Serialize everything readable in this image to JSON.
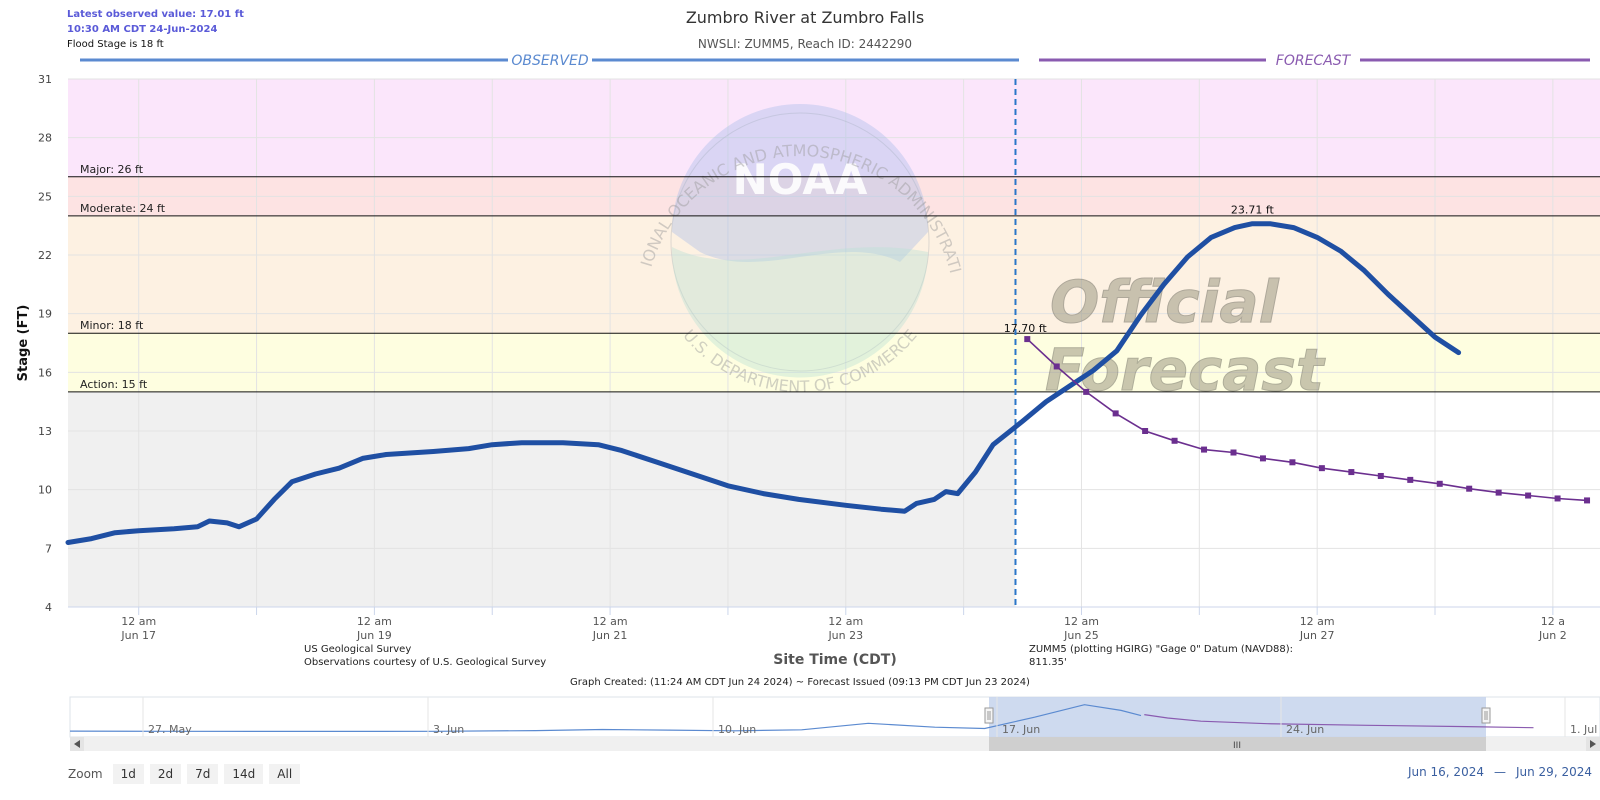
{
  "latest": {
    "line1": "Latest observed value: 17.01 ft",
    "line2": "10:30 AM CDT 24-Jun-2024",
    "flood": "Flood Stage is 18 ft"
  },
  "title": "Zumbro River at Zumbro Falls",
  "subtitle": "NWSLI: ZUMM5, Reach ID: 2442290",
  "observed_label": "OBSERVED",
  "forecast_label": "FORECAST",
  "watermark": {
    "line1": "Official",
    "line2": "Forecast",
    "noaa_text": "NOAA",
    "ring_top": "NATIONAL OCEANIC AND ATMOSPHERIC ADMINISTRATION",
    "ring_bottom": "U.S. DEPARTMENT OF COMMERCE"
  },
  "footer": {
    "source1": "US Geological Survey",
    "source2": "Observations courtesy of U.S. Geological Survey",
    "datum1": "ZUMM5 (plotting HGIRG) \"Gage 0\" Datum (NAVD88):",
    "datum2": "811.35'",
    "created": "Graph Created: (11:24 AM CDT Jun 24 2024) ~ Forecast Issued (09:13 PM CDT Jun 23 2024)"
  },
  "navigator": {
    "labels": [
      "27. May",
      "3. Jun",
      "10. Jun",
      "17. Jun",
      "24. Jun",
      "1. Jul"
    ],
    "grip": "III"
  },
  "zoom": {
    "label": "Zoom",
    "buttons": [
      "1d",
      "2d",
      "7d",
      "14d",
      "All"
    ]
  },
  "range": {
    "from": "Jun 16, 2024",
    "sep": "—",
    "to": "Jun 29, 2024"
  },
  "colors": {
    "observed": "#1f4fa3",
    "forecast": "#6b2f8f",
    "major": "#fbe6fb",
    "moderate": "#fde3e3",
    "minor": "#fdf1e2",
    "action": "#fefee0",
    "below": "#f0f0f0"
  },
  "chart_data": {
    "type": "line",
    "xlabel": "Site Time (CDT)",
    "ylabel": "Stage (FT)",
    "ylim": [
      4,
      31
    ],
    "xlim": [
      -0.6,
      12.4
    ],
    "x_unit": "days since Jun 17 00:00 CDT",
    "yticks": [
      4,
      7,
      10,
      13,
      16,
      19,
      22,
      25,
      28,
      31
    ],
    "xticks": [
      {
        "d": 0,
        "l1": "12 am",
        "l2": "Jun 17"
      },
      {
        "d": 2,
        "l1": "12 am",
        "l2": "Jun 19"
      },
      {
        "d": 4,
        "l1": "12 am",
        "l2": "Jun 21"
      },
      {
        "d": 6,
        "l1": "12 am",
        "l2": "Jun 23"
      },
      {
        "d": 8,
        "l1": "12 am",
        "l2": "Jun 25"
      },
      {
        "d": 10,
        "l1": "12 am",
        "l2": "Jun 27"
      },
      {
        "d": 12,
        "l1": "12 a",
        "l2": "Jun 2"
      }
    ],
    "thresholds": [
      {
        "name": "Major",
        "label": "Major: 26 ft",
        "value": 26
      },
      {
        "name": "Moderate",
        "label": "Moderate: 24 ft",
        "value": 24
      },
      {
        "name": "Minor",
        "label": "Minor: 18 ft",
        "value": 18
      },
      {
        "name": "Action",
        "label": "Action: 15 ft",
        "value": 15
      }
    ],
    "now": 7.44,
    "series": [
      {
        "name": "Observed",
        "points": [
          [
            -0.6,
            7.3
          ],
          [
            -0.4,
            7.5
          ],
          [
            -0.2,
            7.8
          ],
          [
            0.0,
            7.9
          ],
          [
            0.3,
            8.0
          ],
          [
            0.5,
            8.1
          ],
          [
            0.6,
            8.4
          ],
          [
            0.75,
            8.3
          ],
          [
            0.85,
            8.1
          ],
          [
            1.0,
            8.5
          ],
          [
            1.15,
            9.5
          ],
          [
            1.3,
            10.4
          ],
          [
            1.5,
            10.8
          ],
          [
            1.7,
            11.1
          ],
          [
            1.9,
            11.6
          ],
          [
            2.1,
            11.8
          ],
          [
            2.5,
            11.95
          ],
          [
            2.8,
            12.1
          ],
          [
            3.0,
            12.3
          ],
          [
            3.25,
            12.4
          ],
          [
            3.6,
            12.4
          ],
          [
            3.9,
            12.3
          ],
          [
            4.1,
            12.0
          ],
          [
            4.4,
            11.4
          ],
          [
            4.7,
            10.8
          ],
          [
            5.0,
            10.2
          ],
          [
            5.3,
            9.8
          ],
          [
            5.6,
            9.5
          ],
          [
            6.0,
            9.2
          ],
          [
            6.3,
            9.0
          ],
          [
            6.5,
            8.9
          ],
          [
            6.6,
            9.3
          ],
          [
            6.75,
            9.5
          ],
          [
            6.85,
            9.9
          ],
          [
            6.95,
            9.8
          ],
          [
            7.1,
            10.9
          ],
          [
            7.25,
            12.3
          ],
          [
            7.5,
            13.5
          ],
          [
            7.7,
            14.5
          ],
          [
            7.9,
            15.3
          ],
          [
            8.1,
            16.1
          ],
          [
            8.3,
            17.1
          ],
          [
            8.5,
            18.9
          ],
          [
            8.7,
            20.5
          ],
          [
            8.9,
            21.9
          ],
          [
            9.1,
            22.9
          ],
          [
            9.3,
            23.4
          ],
          [
            9.45,
            23.6
          ],
          [
            9.6,
            23.6
          ],
          [
            9.8,
            23.4
          ],
          [
            10.0,
            22.9
          ],
          [
            10.2,
            22.2
          ],
          [
            10.4,
            21.2
          ],
          [
            10.6,
            20.0
          ],
          [
            10.8,
            18.9
          ],
          [
            11.0,
            17.8
          ],
          [
            11.2,
            17.01
          ]
        ],
        "peak_label": "23.71 ft",
        "peak_at": [
          9.45,
          23.71
        ]
      },
      {
        "name": "Forecast",
        "points": [
          [
            7.54,
            17.7
          ],
          [
            7.79,
            16.3
          ],
          [
            8.04,
            15.0
          ],
          [
            8.29,
            13.9
          ],
          [
            8.54,
            13.0
          ],
          [
            8.79,
            12.5
          ],
          [
            9.04,
            12.05
          ],
          [
            9.29,
            11.9
          ],
          [
            9.54,
            11.6
          ],
          [
            9.79,
            11.4
          ],
          [
            10.04,
            11.1
          ],
          [
            10.29,
            10.9
          ],
          [
            10.54,
            10.7
          ],
          [
            10.79,
            10.5
          ],
          [
            11.04,
            10.3
          ],
          [
            11.29,
            10.05
          ],
          [
            11.54,
            9.85
          ],
          [
            11.79,
            9.7
          ],
          [
            12.04,
            9.55
          ],
          [
            12.29,
            9.45
          ]
        ],
        "start_label": "17.70 ft"
      }
    ]
  }
}
